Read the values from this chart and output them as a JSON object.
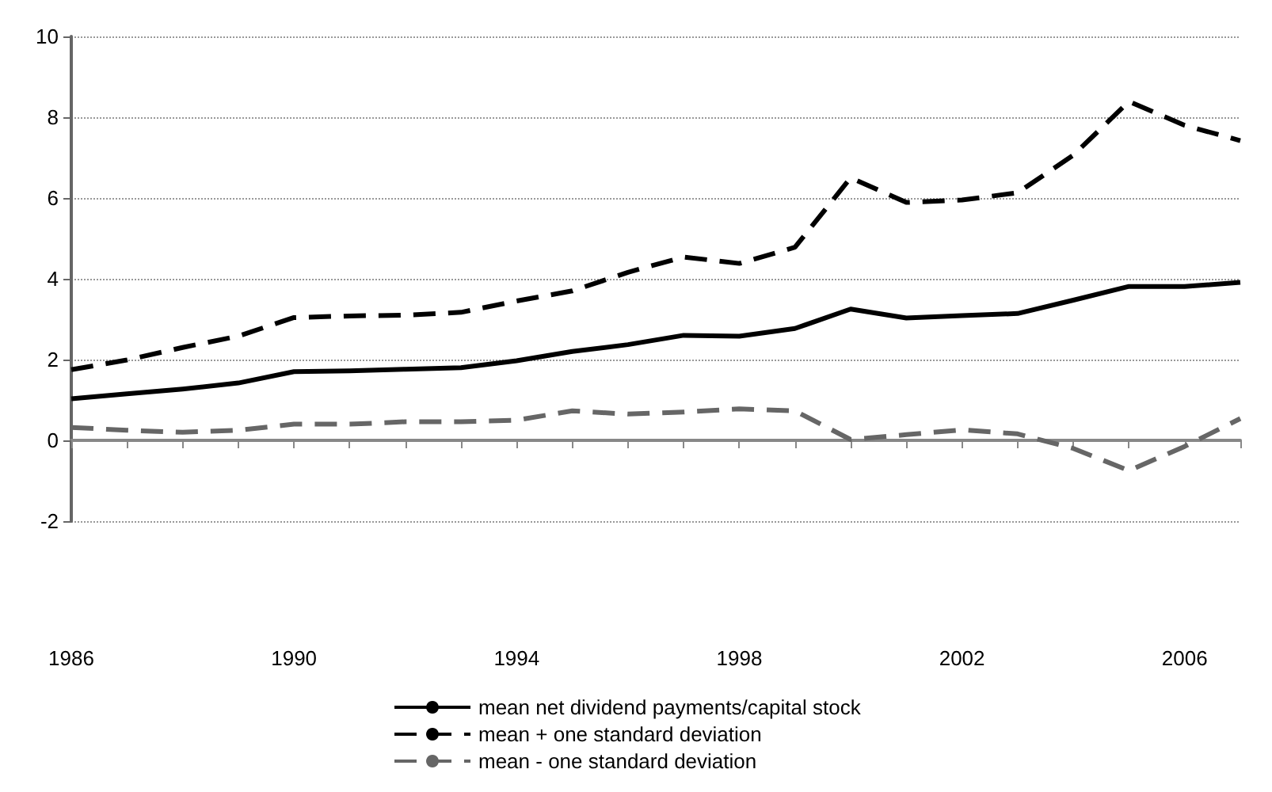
{
  "chart_data": {
    "type": "line",
    "categories": [
      "1986",
      null,
      null,
      null,
      "1990",
      null,
      null,
      null,
      "1994",
      null,
      null,
      null,
      "1998",
      null,
      null,
      null,
      "2002",
      null,
      null,
      null,
      "2006",
      null
    ],
    "series": [
      {
        "name": "mean net dividend payments/capital stock",
        "color": "#000000",
        "line_style": "solid",
        "values": [
          1.03,
          1.15,
          1.27,
          1.42,
          1.7,
          1.72,
          1.76,
          1.8,
          1.97,
          2.2,
          2.37,
          2.6,
          2.58,
          2.77,
          3.25,
          3.03,
          3.09,
          3.14,
          3.47,
          3.81,
          3.81,
          3.91
        ]
      },
      {
        "name": "mean + one standard deviation",
        "color": "#000000",
        "line_style": "dashed",
        "values": [
          1.75,
          1.99,
          2.3,
          2.58,
          3.04,
          3.08,
          3.1,
          3.17,
          3.45,
          3.7,
          4.16,
          4.54,
          4.38,
          4.78,
          6.5,
          5.89,
          5.95,
          6.13,
          7.06,
          8.39,
          7.8,
          7.42
        ]
      },
      {
        "name": "mean - one standard deviation",
        "color": "#666666",
        "line_style": "dashed",
        "values": [
          0.32,
          0.25,
          0.2,
          0.25,
          0.4,
          0.4,
          0.46,
          0.46,
          0.5,
          0.73,
          0.65,
          0.7,
          0.78,
          0.73,
          0.02,
          0.14,
          0.26,
          0.16,
          -0.2,
          -0.75,
          -0.15,
          0.54
        ]
      }
    ],
    "ylim": [
      -2,
      10
    ],
    "yticks": [
      -2,
      0,
      2,
      4,
      6,
      8,
      10
    ],
    "grid": "y",
    "legend": "bottom",
    "marker": "none"
  }
}
